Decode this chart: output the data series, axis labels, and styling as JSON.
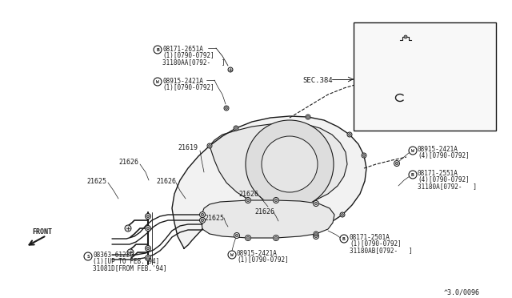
{
  "bg_color": "#ffffff",
  "line_color": "#1a1a1a",
  "text_color": "#1a1a1a",
  "diagram_id": "^3.0/0096",
  "labels": {
    "sec384": "SEC.384",
    "part_b1_line1": "B 08171-2651A",
    "part_b1_line2": "(1)[0790-0792]",
    "part_b1_line3": "31180AA[0792-   ]",
    "part_w1_line1": "W 08915-2421A",
    "part_w1_line2": "(1)[0790-0792]",
    "part_21619": "21619",
    "part_21626": "21626",
    "part_21625": "21625",
    "part_front": "FRONT",
    "part_s_line1": "S 08363-6122G",
    "part_s_line2": "(1)[UP TO FEB.'94]",
    "part_s_line3": "31081D[FROM FEB.'94]",
    "part_w2_line1": "W 08915-2421A",
    "part_w2_line2": "(1)[0790-0792]",
    "part_w3_line1": "W 08915-2421A",
    "part_w3_line2": "(4)[0790-0792]",
    "part_b2_line1": "B 08171-2551A",
    "part_b2_line2": "(4)[0790-0792]",
    "part_b2_line3": "31180A[0792-   ]",
    "part_b3_line1": "B 08171-2501A",
    "part_b3_line2": "(1)[0790-0792]",
    "part_b3_line3": "31180AB[0792-   ]"
  }
}
